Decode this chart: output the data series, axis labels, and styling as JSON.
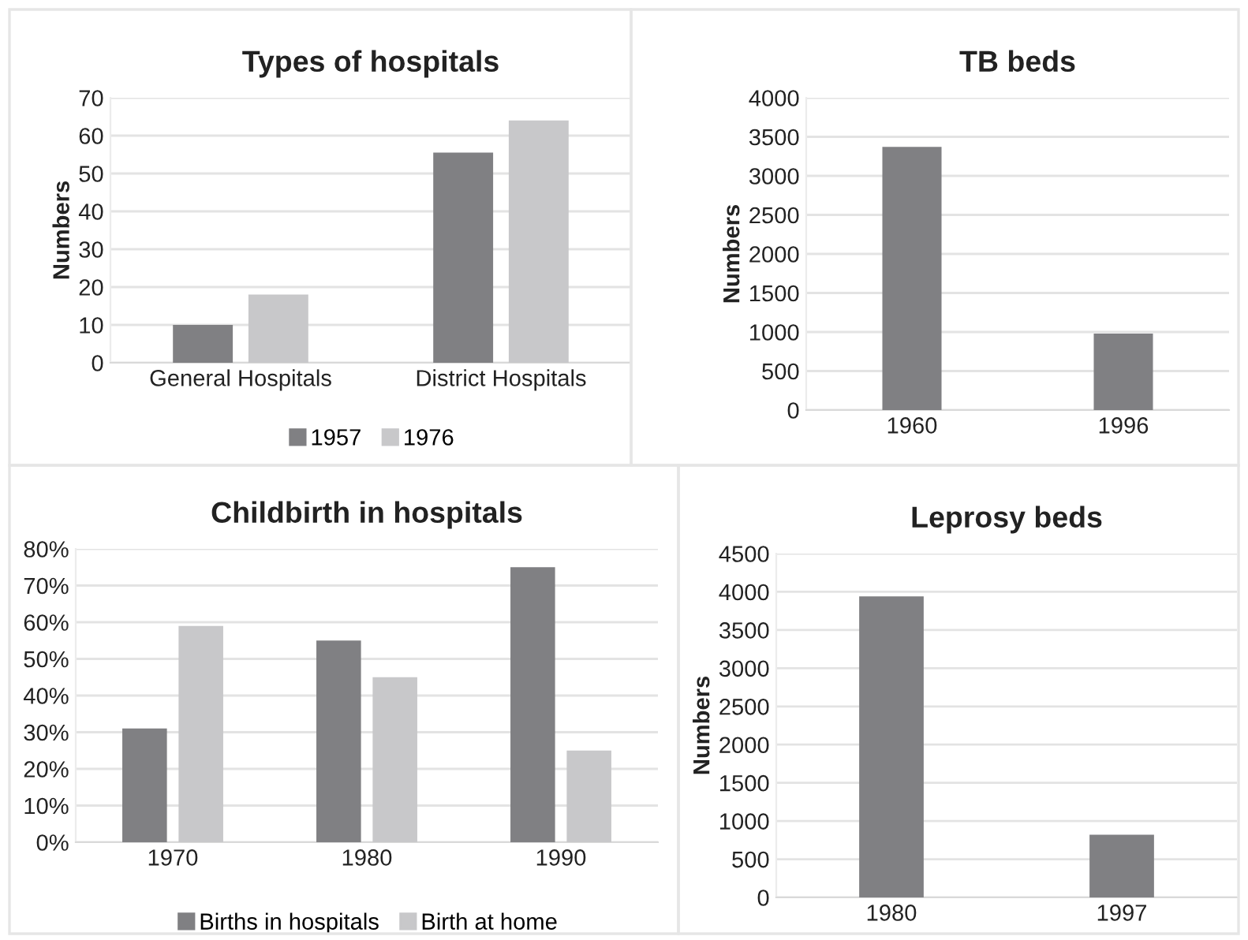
{
  "chart_data": [
    {
      "type": "bar",
      "title": "Types of hospitals",
      "ylabel": "Numbers",
      "categories": [
        "General Hospitals",
        "District Hospitals"
      ],
      "series": [
        {
          "name": "1957",
          "color": "#808083",
          "values": [
            10,
            55.5
          ]
        },
        {
          "name": "1976",
          "color": "#c8c8ca",
          "values": [
            18,
            64
          ]
        }
      ],
      "ylim": [
        0,
        70
      ],
      "yticks": [
        0,
        10,
        20,
        30,
        40,
        50,
        60,
        70
      ],
      "grid": "y",
      "legend": "bottom"
    },
    {
      "type": "bar",
      "title": "TB beds",
      "ylabel": "Numbers",
      "categories": [
        "1960",
        "1996"
      ],
      "series": [
        {
          "color": "#808083",
          "values": [
            3370,
            980
          ]
        }
      ],
      "ylim": [
        0,
        4000
      ],
      "yticks": [
        0,
        500,
        1000,
        1500,
        2000,
        2500,
        3000,
        3500,
        4000
      ],
      "grid": "y"
    },
    {
      "type": "bar",
      "title": "Childbirth in hospitals",
      "categories": [
        "1970",
        "1980",
        "1990"
      ],
      "series": [
        {
          "name": "Births in hospitals",
          "color": "#808083",
          "values": [
            31,
            55,
            75
          ]
        },
        {
          "name": "Birth at home",
          "color": "#c8c8ca",
          "values": [
            59,
            45,
            25
          ]
        }
      ],
      "ylim": [
        0,
        80
      ],
      "yticks": [
        {
          "value": 0,
          "label": "0%"
        },
        {
          "value": 10,
          "label": "10%"
        },
        {
          "value": 20,
          "label": "20%"
        },
        {
          "value": 30,
          "label": "30%"
        },
        {
          "value": 40,
          "label": "40%"
        },
        {
          "value": 50,
          "label": "50%"
        },
        {
          "value": 60,
          "label": "60%"
        },
        {
          "value": 70,
          "label": "70%"
        },
        {
          "value": 80,
          "label": "80%"
        }
      ],
      "grid": "y",
      "legend": "bottom"
    },
    {
      "type": "bar",
      "title": "Leprosy beds",
      "ylabel": "Numbers",
      "categories": [
        "1980",
        "1997"
      ],
      "series": [
        {
          "color": "#808083",
          "values": [
            3940,
            820
          ]
        }
      ],
      "ylim": [
        0,
        4500
      ],
      "yticks": [
        0,
        500,
        1000,
        1500,
        2000,
        2500,
        3000,
        3500,
        4000,
        4500
      ],
      "grid": "y"
    }
  ]
}
